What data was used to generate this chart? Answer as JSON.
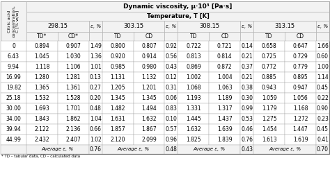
{
  "title1": "Dynamic viscosity, μ·10³ [Pa·s]",
  "title2": "Temperature, T [K]",
  "col_header_left": "Citric acid\nconcentration,\nC [% w/w]",
  "temperatures": [
    "298.15",
    "303.15",
    "308.15",
    "313.15"
  ],
  "concentrations": [
    "0",
    "6.43",
    "9.94",
    "16.99",
    "19.82",
    "25.18",
    "30.00",
    "34.00",
    "39.94",
    "44.99"
  ],
  "data": [
    [
      "0.894",
      "0.907",
      "1.49",
      "0.800",
      "0.807",
      "0.92",
      "0.722",
      "0.721",
      "0.14",
      "0.658",
      "0.647",
      "1.66"
    ],
    [
      "1.045",
      "1.030",
      "1.36",
      "0.920",
      "0.914",
      "0.56",
      "0.813",
      "0.814",
      "0.21",
      "0.725",
      "0.729",
      "0.60"
    ],
    [
      "1.118",
      "1.106",
      "1.01",
      "0.985",
      "0.980",
      "0.43",
      "0.869",
      "0.872",
      "0.37",
      "0.772",
      "0.779",
      "1.00"
    ],
    [
      "1.280",
      "1.281",
      "0.13",
      "1.131",
      "1.132",
      "0.12",
      "1.002",
      "1.004",
      "0.21",
      "0.885",
      "0.895",
      "1.14"
    ],
    [
      "1.365",
      "1.361",
      "0.27",
      "1.205",
      "1.201",
      "0.31",
      "1.068",
      "1.063",
      "0.38",
      "0.943",
      "0.947",
      "0.45"
    ],
    [
      "1.532",
      "1.528",
      "0.20",
      "1.345",
      "1.345",
      "0.06",
      "1.193",
      "1.189",
      "0.30",
      "1.059",
      "1.056",
      "0.22"
    ],
    [
      "1.693",
      "1.701",
      "0.48",
      "1.482",
      "1.494",
      "0.83",
      "1.331",
      "1.317",
      "0.99",
      "1.179",
      "1.168",
      "0.90"
    ],
    [
      "1.843",
      "1.862",
      "1.04",
      "1.631",
      "1.632",
      "0.10",
      "1.445",
      "1.437",
      "0.53",
      "1.275",
      "1.272",
      "0.23"
    ],
    [
      "2.122",
      "2.136",
      "0.66",
      "1.857",
      "1.867",
      "0.57",
      "1.632",
      "1.639",
      "0.46",
      "1.454",
      "1.447",
      "0.45"
    ],
    [
      "2.432",
      "2.407",
      "1.02",
      "2.120",
      "2.099",
      "0.96",
      "1.825",
      "1.839",
      "0.76",
      "1.613",
      "1.619",
      "0.41"
    ]
  ],
  "avg_eps": [
    "0.76",
    "0.48",
    "0.43",
    "0.70"
  ],
  "footnote": "* TD – tabular data, CD – calculated data",
  "bg_color": "#ffffff",
  "header_bg": "#f2f2f2",
  "line_color": "#aaaaaa",
  "outer_line_color": "#666666"
}
